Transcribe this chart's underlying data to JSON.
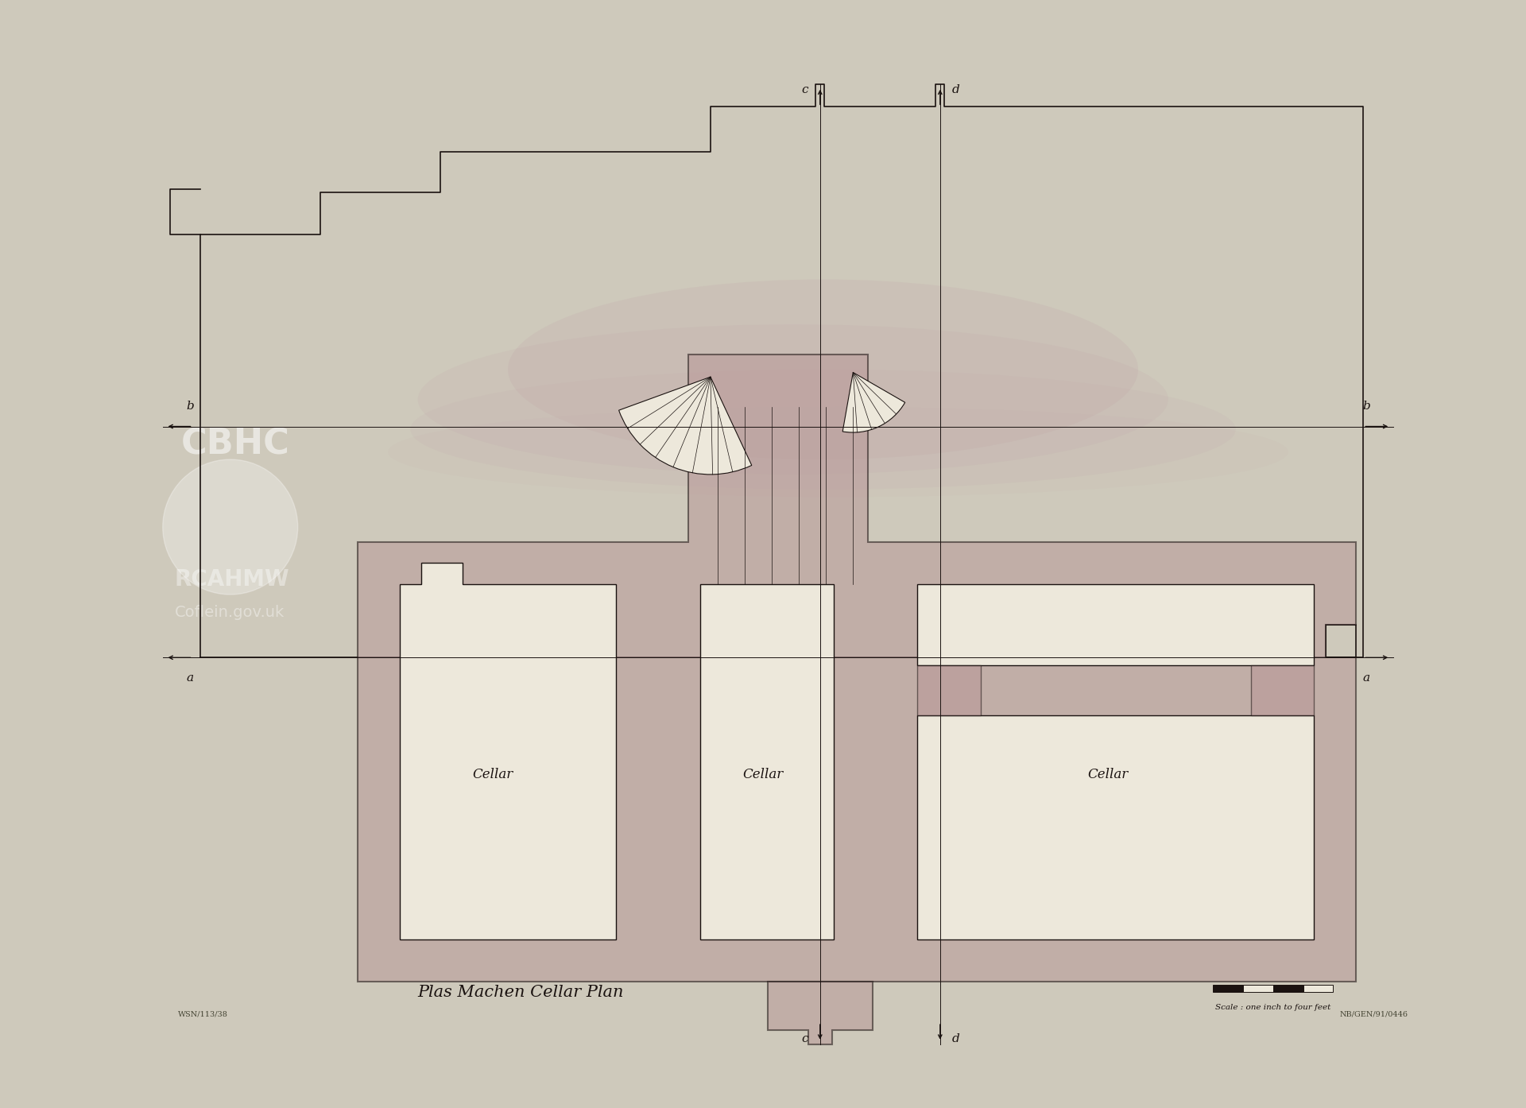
{
  "bg_color": "#cec9bb",
  "paper_color": "#e9e4d5",
  "wall_fill": "#b89898",
  "wall_alpha": 0.55,
  "room_fill": "#ede8db",
  "line_color": "#1a1210",
  "pink_wash": "#c0a0a8",
  "pink_wash_alpha": 0.35,
  "title": "Plas Machen Cellar Plan",
  "scale_text": "Scale : one inch to four feet",
  "ref_text": "NB/GEN/91/0446",
  "wsn_text": "WSN/113/38"
}
